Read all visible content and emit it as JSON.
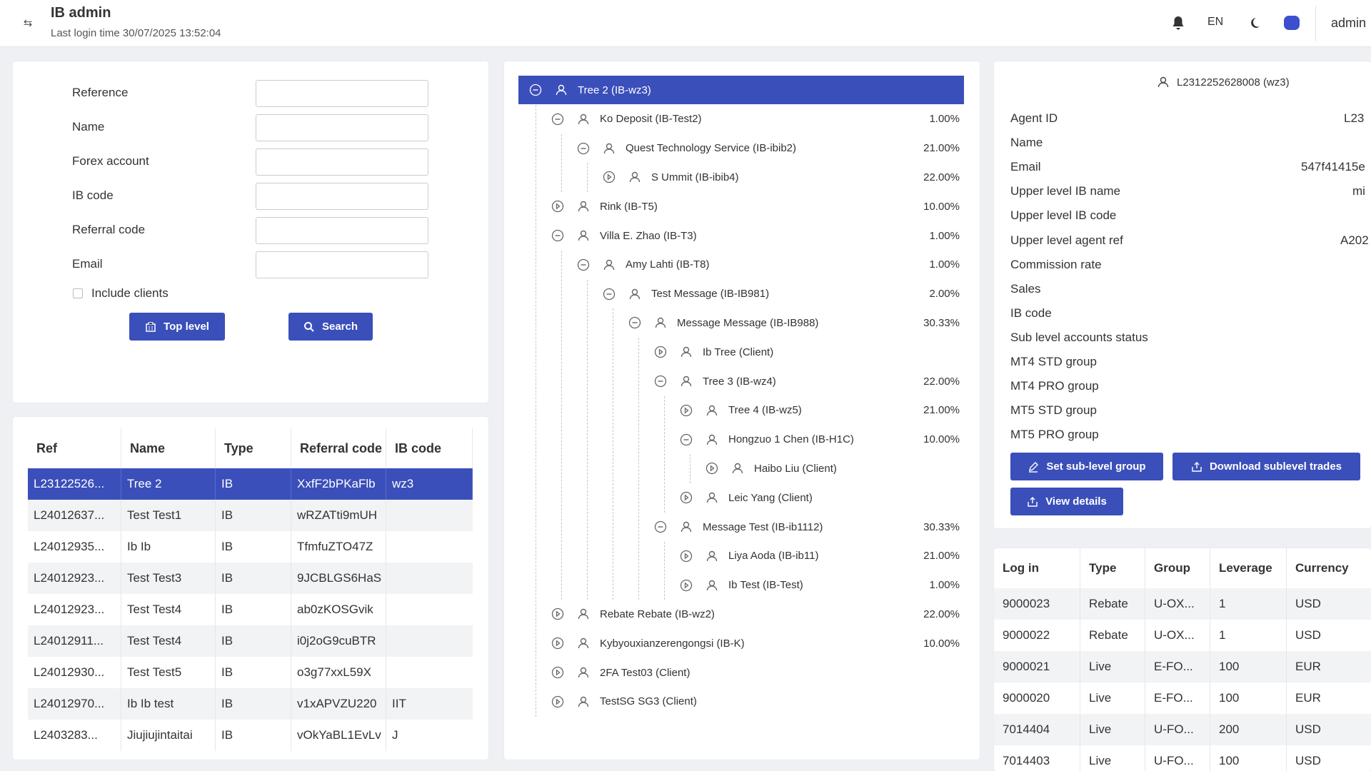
{
  "header": {
    "title": "IB admin",
    "last_login": "Last login time 30/07/2025 13:52:04",
    "language": "EN",
    "user": "admin"
  },
  "search_form": {
    "fields": [
      {
        "label": "Reference",
        "value": ""
      },
      {
        "label": "Name",
        "value": ""
      },
      {
        "label": "Forex account",
        "value": ""
      },
      {
        "label": "IB code",
        "value": ""
      },
      {
        "label": "Referral code",
        "value": ""
      },
      {
        "label": "Email",
        "value": ""
      }
    ],
    "include_clients_label": "Include clients",
    "include_clients_checked": false,
    "top_level_label": "Top level",
    "search_label": "Search"
  },
  "ib_table": {
    "columns": [
      "Ref",
      "Name",
      "Type",
      "Referral code",
      "IB code"
    ],
    "rows": [
      [
        "L23122526...",
        "Tree 2",
        "IB",
        "XxfF2bPKaFlb",
        "wz3"
      ],
      [
        "L24012637...",
        "Test Test1",
        "IB",
        "wRZATti9mUH",
        ""
      ],
      [
        "L24012935...",
        "Ib Ib",
        "IB",
        "TfmfuZTO47Z",
        ""
      ],
      [
        "L24012923...",
        "Test Test3",
        "IB",
        "9JCBLGS6HaS",
        ""
      ],
      [
        "L24012923...",
        "Test Test4",
        "IB",
        "ab0zKOSGvik",
        ""
      ],
      [
        "L24012911...",
        "Test Test4",
        "IB",
        "i0j2oG9cuBTR",
        ""
      ],
      [
        "L24012930...",
        "Test Test5",
        "IB",
        "o3g77xxL59X",
        ""
      ],
      [
        "L24012970...",
        "Ib Ib test",
        "IB",
        "v1xAPVZU220",
        "IIT"
      ],
      [
        "L2403283...",
        "Jiujiujintaitai",
        "IB",
        "vOkYaBL1EvLv",
        "J"
      ]
    ],
    "selected_row": 0
  },
  "tree": {
    "nodes": [
      {
        "label": "Tree 2 (IB-wz3)",
        "pct": "",
        "state": "collapse"
      },
      {
        "label": "Ko Deposit (IB-Test2)",
        "pct": "1.00%",
        "state": "collapse"
      },
      {
        "label": "Quest Technology Service (IB-ibib2)",
        "pct": "21.00%",
        "state": "collapse"
      },
      {
        "label": "S Ummit (IB-ibib4)",
        "pct": "22.00%",
        "state": "expand"
      },
      {
        "label": "Rink (IB-T5)",
        "pct": "10.00%",
        "state": "expand"
      },
      {
        "label": "Villa E. Zhao (IB-T3)",
        "pct": "1.00%",
        "state": "collapse"
      },
      {
        "label": "Amy Lahti (IB-T8)",
        "pct": "1.00%",
        "state": "collapse"
      },
      {
        "label": "Test Message (IB-IB981)",
        "pct": "2.00%",
        "state": "collapse"
      },
      {
        "label": "Message Message (IB-IB988)",
        "pct": "30.33%",
        "state": "collapse"
      },
      {
        "label": "Ib Tree (Client)",
        "pct": "",
        "state": "expand"
      },
      {
        "label": "Tree 3 (IB-wz4)",
        "pct": "22.00%",
        "state": "collapse"
      },
      {
        "label": "Tree 4 (IB-wz5)",
        "pct": "21.00%",
        "state": "expand"
      },
      {
        "label": "Hongzuo 1 Chen (IB-H1C)",
        "pct": "10.00%",
        "state": "collapse"
      },
      {
        "label": "Haibo Liu (Client)",
        "pct": "",
        "state": "expand"
      },
      {
        "label": "Leic Yang (Client)",
        "pct": "",
        "state": "expand"
      },
      {
        "label": "Message Test (IB-ib1112)",
        "pct": "30.33%",
        "state": "collapse"
      },
      {
        "label": "Liya Aoda (IB-ib11)",
        "pct": "21.00%",
        "state": "expand"
      },
      {
        "label": "Ib Test (IB-Test)",
        "pct": "1.00%",
        "state": "expand"
      },
      {
        "label": "Rebate Rebate (IB-wz2)",
        "pct": "22.00%",
        "state": "expand"
      },
      {
        "label": "Kybyouxianzerengongsi (IB-K)",
        "pct": "10.00%",
        "state": "expand"
      },
      {
        "label": "2FA Test03 (Client)",
        "pct": "",
        "state": "expand"
      },
      {
        "label": "TestSG SG3 (Client)",
        "pct": "",
        "state": "expand"
      }
    ]
  },
  "details": {
    "agent_header": "L2312252628008 (wz3)",
    "fields": [
      {
        "label": "Agent ID",
        "value": "L23"
      },
      {
        "label": "Name",
        "value": ""
      },
      {
        "label": "Email",
        "value": "547f41415e"
      },
      {
        "label": "Upper level IB name",
        "value": "mi"
      },
      {
        "label": "Upper level IB code",
        "value": ""
      },
      {
        "label": "Upper level agent ref",
        "value": "A202"
      },
      {
        "label": "Commission rate",
        "value": ""
      },
      {
        "label": "Sales",
        "value": ""
      },
      {
        "label": "IB code",
        "value": ""
      },
      {
        "label": "Sub level accounts status",
        "value": ""
      },
      {
        "label": "MT4 STD group",
        "value": ""
      },
      {
        "label": "MT4 PRO group",
        "value": ""
      },
      {
        "label": "MT5 STD group",
        "value": ""
      },
      {
        "label": "MT5 PRO group",
        "value": ""
      }
    ],
    "set_group_label": "Set sub-level group",
    "download_label": "Download sublevel trades",
    "view_details_label": "View details"
  },
  "accounts": {
    "columns": [
      "Log in",
      "Type",
      "Group",
      "Leverage",
      "Currency"
    ],
    "rows": [
      [
        "9000023",
        "Rebate",
        "U-OX...",
        "1",
        "USD"
      ],
      [
        "9000022",
        "Rebate",
        "U-OX...",
        "1",
        "USD"
      ],
      [
        "9000021",
        "Live",
        "E-FO...",
        "100",
        "EUR"
      ],
      [
        "9000020",
        "Live",
        "E-FO...",
        "100",
        "EUR"
      ],
      [
        "7014404",
        "Live",
        "U-FO...",
        "200",
        "USD"
      ],
      [
        "7014403",
        "Live",
        "U-FO...",
        "100",
        "USD"
      ]
    ]
  },
  "colors": {
    "accent": "#3b4fba",
    "background": "#eef0f4",
    "row_alt": "#f2f3f5"
  }
}
